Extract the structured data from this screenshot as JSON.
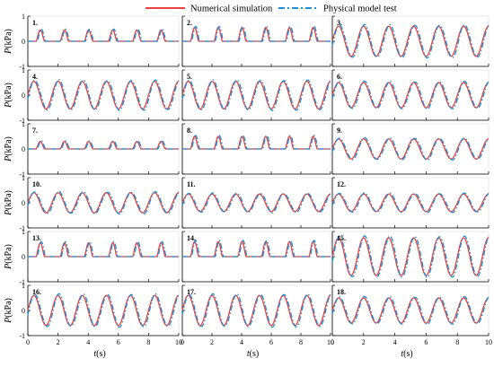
{
  "chart_data": {
    "type": "line",
    "legend": {
      "placement": "top-center",
      "entries": [
        {
          "name": "Numerical simulation",
          "color": "#e8423f",
          "style": "solid"
        },
        {
          "name": "Physical model test",
          "color": "#1f8fd6",
          "style": "dash-dot"
        }
      ]
    },
    "xlabel_var": "t",
    "xlabel_unit": "(s)",
    "ylabel_var": "P",
    "ylabel_unit": "(kPa)",
    "xlim": [
      0,
      10
    ],
    "ylim": [
      -1,
      1
    ],
    "xticks": [
      0,
      2,
      4,
      6,
      8,
      10
    ],
    "yticks": [
      -1,
      0,
      1
    ],
    "period_s": 1.6,
    "panels": [
      {
        "label": "1.",
        "kind": "pulse",
        "amplitude": 0.45,
        "phase_s": 0.55
      },
      {
        "label": "2.",
        "kind": "pulse",
        "amplitude": 0.55,
        "phase_s": 0.55
      },
      {
        "label": "3.",
        "kind": "sine",
        "amplitude": 0.6,
        "phase_s": 0.0
      },
      {
        "label": "4.",
        "kind": "sine",
        "amplitude": 0.55,
        "phase_s": 0.0
      },
      {
        "label": "5.",
        "kind": "sine",
        "amplitude": 0.55,
        "phase_s": 0.0
      },
      {
        "label": "6.",
        "kind": "sine",
        "amplitude": 0.5,
        "phase_s": 0.0
      },
      {
        "label": "7.",
        "kind": "pulse",
        "amplitude": 0.3,
        "phase_s": 0.55
      },
      {
        "label": "8.",
        "kind": "pulse",
        "amplitude": 0.5,
        "phase_s": 0.55
      },
      {
        "label": "9.",
        "kind": "sine",
        "amplitude": 0.4,
        "phase_s": 0.0
      },
      {
        "label": "10.",
        "kind": "sine",
        "amplitude": 0.4,
        "phase_s": 0.0
      },
      {
        "label": "11.",
        "kind": "sine",
        "amplitude": 0.35,
        "phase_s": 0.0
      },
      {
        "label": "12.",
        "kind": "sine",
        "amplitude": 0.35,
        "phase_s": 0.0
      },
      {
        "label": "13.",
        "kind": "pulse",
        "amplitude": 0.55,
        "phase_s": 0.55
      },
      {
        "label": "14.",
        "kind": "pulse",
        "amplitude": 0.6,
        "phase_s": 0.55
      },
      {
        "label": "15.",
        "kind": "sine",
        "amplitude": 0.75,
        "phase_s": 0.0
      },
      {
        "label": "16.",
        "kind": "sine",
        "amplitude": 0.6,
        "phase_s": 0.0
      },
      {
        "label": "17.",
        "kind": "sine",
        "amplitude": 0.6,
        "phase_s": 0.0
      },
      {
        "label": "18.",
        "kind": "sine",
        "amplitude": 0.5,
        "phase_s": 0.0
      }
    ]
  }
}
